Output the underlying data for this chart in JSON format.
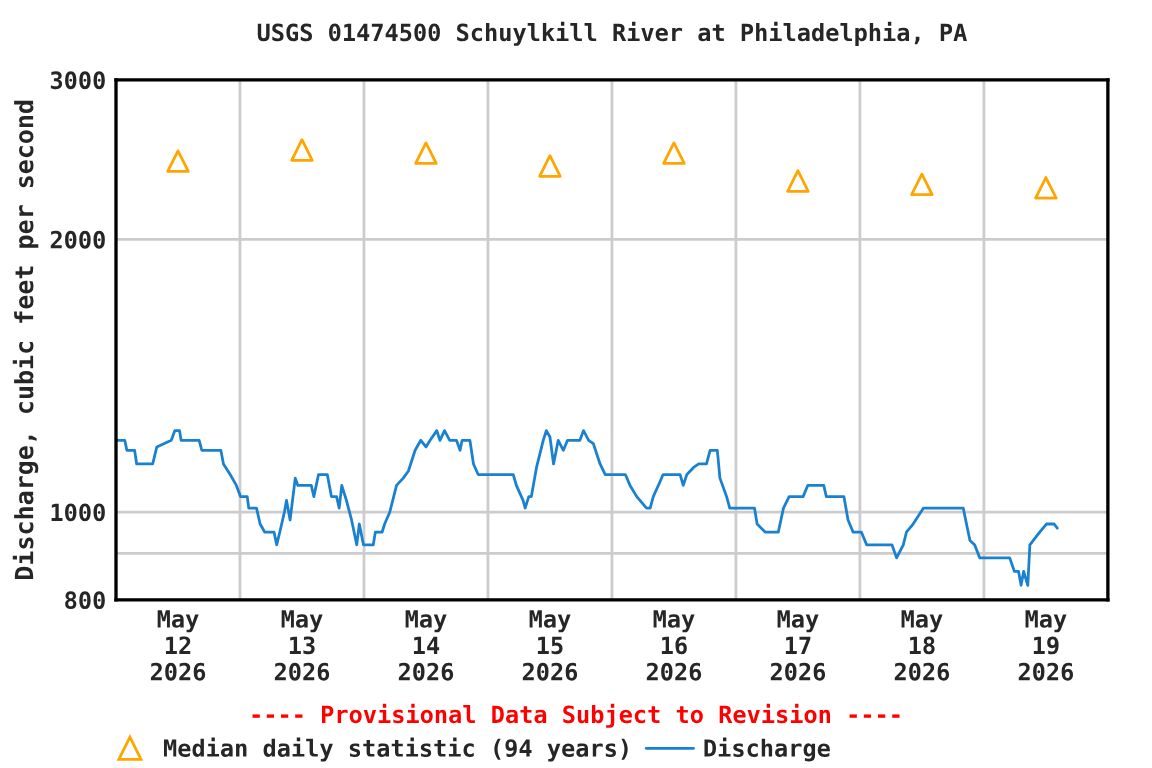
{
  "chart_data": {
    "type": "line",
    "title": "USGS 01474500 Schuylkill River at Philadelphia, PA",
    "ylabel": "Discharge, cubic feet per second",
    "log": "y",
    "xlim": [
      "2026-05-12T00:00",
      "2026-05-20T00:00"
    ],
    "ylim": [
      800,
      3000
    ],
    "xticks": [
      {
        "value": "2026-05-12T12:00",
        "label": "May\n12\n2026"
      },
      {
        "value": "2026-05-13T00:00",
        "label": null
      },
      {
        "value": "2026-05-13T12:00",
        "label": "May\n13\n2026"
      },
      {
        "value": "2026-05-14T00:00",
        "label": null
      },
      {
        "value": "2026-05-14T12:00",
        "label": "May\n14\n2026"
      },
      {
        "value": "2026-05-15T00:00",
        "label": null
      },
      {
        "value": "2026-05-15T12:00",
        "label": "May\n15\n2026"
      },
      {
        "value": "2026-05-16T00:00",
        "label": null
      },
      {
        "value": "2026-05-16T12:00",
        "label": "May\n16\n2026"
      },
      {
        "value": "2026-05-17T00:00",
        "label": null
      },
      {
        "value": "2026-05-17T12:00",
        "label": "May\n17\n2026"
      },
      {
        "value": "2026-05-18T00:00",
        "label": null
      },
      {
        "value": "2026-05-18T12:00",
        "label": "May\n18\n2026"
      },
      {
        "value": "2026-05-19T00:00",
        "label": null
      },
      {
        "value": "2026-05-19T12:00",
        "label": "May\n19\n2026"
      }
    ],
    "yticks": [
      800,
      {
        "value": 900,
        "label": null
      },
      1000,
      2000,
      3000
    ],
    "grid": true,
    "legend": "bottom left",
    "annotations": [
      "---- Provisional Data Subject to Revision ----"
    ],
    "series": [
      {
        "name": "Median daily statistic (94 years)",
        "type": "scatter",
        "marker": "triangle",
        "color": "#ffa500",
        "x": [
          "2026-05-12T12:00",
          "2026-05-13T12:00",
          "2026-05-14T12:00",
          "2026-05-15T12:00",
          "2026-05-16T12:00",
          "2026-05-17T12:00",
          "2026-05-18T12:00",
          "2026-05-19T12:00"
        ],
        "values": [
          2440,
          2510,
          2490,
          2410,
          2490,
          2320,
          2300,
          2280
        ]
      },
      {
        "name": "Discharge",
        "color": "#1a80d0",
        "x": [
          "2026-05-12T00:06",
          "2026-05-12T01:42",
          "2026-05-12T02:06",
          "2026-05-12T03:36",
          "2026-05-12T04:00",
          "2026-05-12T07:06",
          "2026-05-12T07:54",
          "2026-05-12T10:42",
          "2026-05-12T11:24",
          "2026-05-12T12:18",
          "2026-05-12T12:36",
          "2026-05-12T16:06",
          "2026-05-12T16:36",
          "2026-05-12T20:18",
          "2026-05-12T20:48",
          "2026-05-12T22:06",
          "2026-05-12T23:18",
          "2026-05-13T00:06",
          "2026-05-13T01:24",
          "2026-05-13T01:42",
          "2026-05-13T03:12",
          "2026-05-13T03:54",
          "2026-05-13T04:48",
          "2026-05-13T06:36",
          "2026-05-13T07:06",
          "2026-05-13T07:42",
          "2026-05-13T08:36",
          "2026-05-13T09:00",
          "2026-05-13T09:42",
          "2026-05-13T10:42",
          "2026-05-13T11:12",
          "2026-05-13T12:18",
          "2026-05-13T13:48",
          "2026-05-13T14:18",
          "2026-05-13T15:12",
          "2026-05-13T16:54",
          "2026-05-13T17:42",
          "2026-05-13T18:42",
          "2026-05-13T19:12",
          "2026-05-13T19:42",
          "2026-05-13T20:36",
          "2026-05-13T21:36",
          "2026-05-13T22:36",
          "2026-05-13T23:06",
          "2026-05-13T23:54",
          "2026-05-14T01:48",
          "2026-05-14T02:12",
          "2026-05-14T03:30",
          "2026-05-14T04:00",
          "2026-05-14T05:00",
          "2026-05-14T06:18",
          "2026-05-14T07:36",
          "2026-05-14T08:36",
          "2026-05-14T09:54",
          "2026-05-14T11:00",
          "2026-05-14T12:00",
          "2026-05-14T12:48",
          "2026-05-14T14:06",
          "2026-05-14T14:42",
          "2026-05-14T15:36",
          "2026-05-14T16:36",
          "2026-05-14T17:54",
          "2026-05-14T18:36",
          "2026-05-14T19:00",
          "2026-05-14T20:30",
          "2026-05-14T21:12",
          "2026-05-14T22:06",
          "2026-05-15T04:54",
          "2026-05-15T05:30",
          "2026-05-15T06:48",
          "2026-05-15T07:12",
          "2026-05-15T07:54",
          "2026-05-15T08:24",
          "2026-05-15T09:24",
          "2026-05-15T10:42",
          "2026-05-15T11:18",
          "2026-05-15T12:00",
          "2026-05-15T12:42",
          "2026-05-15T13:36",
          "2026-05-15T14:36",
          "2026-05-15T15:24",
          "2026-05-15T17:48",
          "2026-05-15T18:30",
          "2026-05-15T19:30",
          "2026-05-15T20:24",
          "2026-05-15T21:42",
          "2026-05-15T22:42",
          "2026-05-16T02:36",
          "2026-05-16T03:30",
          "2026-05-16T04:48",
          "2026-05-16T06:42",
          "2026-05-16T07:24",
          "2026-05-16T08:00",
          "2026-05-16T09:18",
          "2026-05-16T09:54",
          "2026-05-16T13:12",
          "2026-05-16T13:48",
          "2026-05-16T14:30",
          "2026-05-16T15:48",
          "2026-05-16T16:48",
          "2026-05-16T18:18",
          "2026-05-16T19:00",
          "2026-05-16T20:24",
          "2026-05-16T20:54",
          "2026-05-16T22:12",
          "2026-05-16T22:48",
          "2026-05-17T03:36",
          "2026-05-17T04:06",
          "2026-05-17T05:42",
          "2026-05-17T08:12",
          "2026-05-17T09:12",
          "2026-05-17T10:18",
          "2026-05-17T13:00",
          "2026-05-17T13:54",
          "2026-05-17T17:00",
          "2026-05-17T17:30",
          "2026-05-17T20:54",
          "2026-05-17T21:42",
          "2026-05-17T22:42",
          "2026-05-18T00:18",
          "2026-05-18T01:18",
          "2026-05-18T06:12",
          "2026-05-18T07:06",
          "2026-05-18T08:24",
          "2026-05-18T09:00",
          "2026-05-18T10:18",
          "2026-05-18T12:18",
          "2026-05-18T20:00",
          "2026-05-18T21:18",
          "2026-05-18T22:12",
          "2026-05-18T23:12",
          "2026-05-19T05:00",
          "2026-05-19T05:54",
          "2026-05-19T06:42",
          "2026-05-19T07:12",
          "2026-05-19T07:42",
          "2026-05-19T08:30",
          "2026-05-19T08:54",
          "2026-05-19T10:48",
          "2026-05-19T12:06",
          "2026-05-19T13:36",
          "2026-05-19T14:12"
        ],
        "values": [
          1200,
          1200,
          1170,
          1170,
          1130,
          1130,
          1180,
          1200,
          1230,
          1230,
          1200,
          1200,
          1170,
          1170,
          1130,
          1100,
          1070,
          1040,
          1040,
          1010,
          1010,
          970,
          950,
          950,
          920,
          950,
          1000,
          1030,
          980,
          1090,
          1070,
          1070,
          1070,
          1040,
          1100,
          1100,
          1040,
          1040,
          1010,
          1070,
          1030,
          980,
          920,
          970,
          920,
          920,
          950,
          950,
          970,
          1000,
          1070,
          1090,
          1110,
          1170,
          1200,
          1180,
          1200,
          1230,
          1200,
          1230,
          1200,
          1200,
          1170,
          1200,
          1200,
          1130,
          1100,
          1100,
          1070,
          1030,
          1010,
          1040,
          1040,
          1120,
          1200,
          1230,
          1210,
          1130,
          1200,
          1170,
          1200,
          1200,
          1230,
          1200,
          1190,
          1130,
          1100,
          1100,
          1070,
          1040,
          1010,
          1010,
          1040,
          1080,
          1100,
          1100,
          1070,
          1100,
          1120,
          1130,
          1130,
          1170,
          1170,
          1090,
          1040,
          1010,
          1010,
          970,
          950,
          950,
          1010,
          1040,
          1040,
          1070,
          1070,
          1040,
          1040,
          980,
          950,
          950,
          920,
          920,
          890,
          920,
          950,
          970,
          1010,
          1010,
          930,
          920,
          890,
          890,
          860,
          860,
          830,
          860,
          830,
          920,
          950,
          970,
          970,
          960
        ]
      }
    ]
  }
}
